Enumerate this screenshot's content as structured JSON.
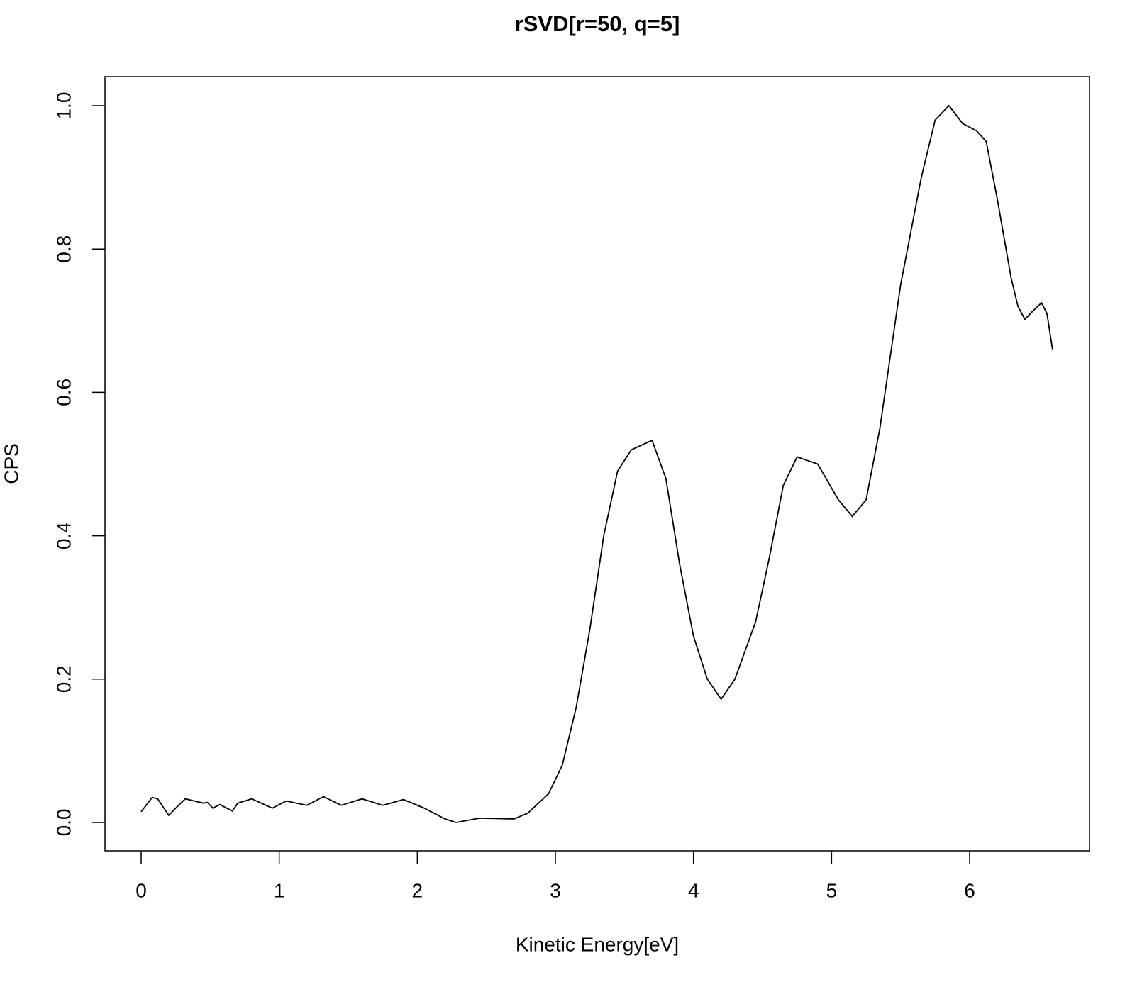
{
  "chart_data": {
    "type": "line",
    "title": "rSVD[r=50, q=5]",
    "x_label": "Kinetic Energy[eV]",
    "y_label": "CPS",
    "series": [
      {
        "color": "#000000",
        "x": [
          0,
          0.08,
          0.12,
          0.2,
          0.25,
          0.32,
          0.45,
          0.48,
          0.52,
          0.57,
          0.66,
          0.7,
          0.8,
          0.95,
          1.05,
          1.2,
          1.32,
          1.45,
          1.6,
          1.75,
          1.9,
          2.05,
          2.2,
          2.28,
          2.45,
          2.7,
          2.8,
          2.95,
          3.05,
          3.15,
          3.25,
          3.35,
          3.45,
          3.55,
          3.7,
          3.8,
          3.9,
          4.0,
          4.1,
          4.2,
          4.3,
          4.45,
          4.55,
          4.65,
          4.75,
          4.9,
          5.05,
          5.15,
          5.25,
          5.35,
          5.5,
          5.65,
          5.75,
          5.85,
          5.95,
          6.05,
          6.12,
          6.2,
          6.3,
          6.35,
          6.4,
          6.45,
          6.52,
          6.56,
          6.6
        ],
        "values": [
          0.015,
          0.035,
          0.033,
          0.01,
          0.02,
          0.033,
          0.027,
          0.028,
          0.02,
          0.025,
          0.016,
          0.027,
          0.033,
          0.02,
          0.03,
          0.024,
          0.036,
          0.024,
          0.033,
          0.024,
          0.032,
          0.02,
          0.005,
          0,
          0.006,
          0.005,
          0.013,
          0.04,
          0.08,
          0.16,
          0.27,
          0.4,
          0.49,
          0.52,
          0.533,
          0.48,
          0.36,
          0.26,
          0.2,
          0.172,
          0.2,
          0.28,
          0.37,
          0.47,
          0.51,
          0.5,
          0.45,
          0.427,
          0.45,
          0.55,
          0.75,
          0.9,
          0.98,
          1.0,
          0.975,
          0.965,
          0.95,
          0.87,
          0.76,
          0.72,
          0.702,
          0.712,
          0.725,
          0.71,
          0.66
        ]
      }
    ],
    "xlim": [
      -0.262,
      6.868
    ],
    "ylim": [
      -0.0396,
      1.0406
    ],
    "xticks": [
      0,
      1,
      2,
      3,
      4,
      5,
      6
    ],
    "yticks": [
      {
        "value": 0,
        "label": "0.0"
      },
      0.2,
      0.4,
      0.6,
      0.8,
      {
        "value": 1,
        "label": "1.0"
      }
    ]
  }
}
